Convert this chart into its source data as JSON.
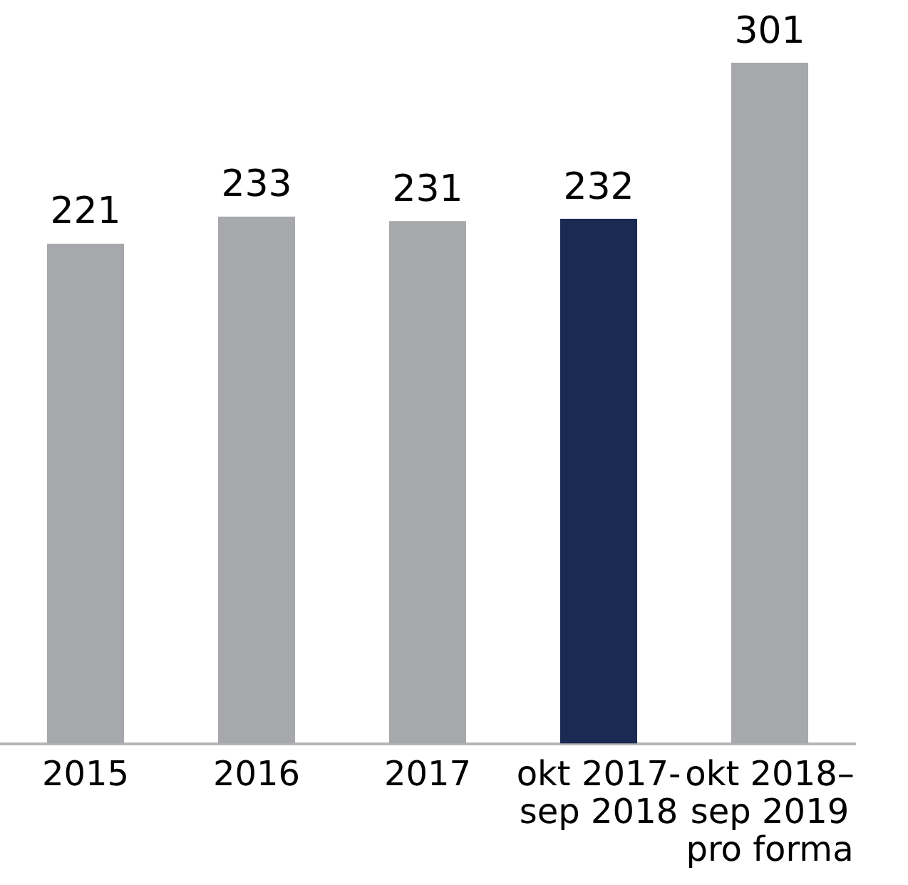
{
  "chart_data": {
    "type": "bar",
    "categories": [
      "2015",
      "2016",
      "2017",
      "okt 2017-\nsep 2018",
      "okt 2018–\nsep 2019\npro forma"
    ],
    "values": [
      221,
      233,
      231,
      232,
      301
    ],
    "colors": [
      "#a7a8ac",
      "#a7a8ac",
      "#a7a8ac",
      "#1b2a52",
      "#a7a8ac"
    ],
    "data_labels": true,
    "tick_labels": "x",
    "legend": false,
    "grid": false
  }
}
